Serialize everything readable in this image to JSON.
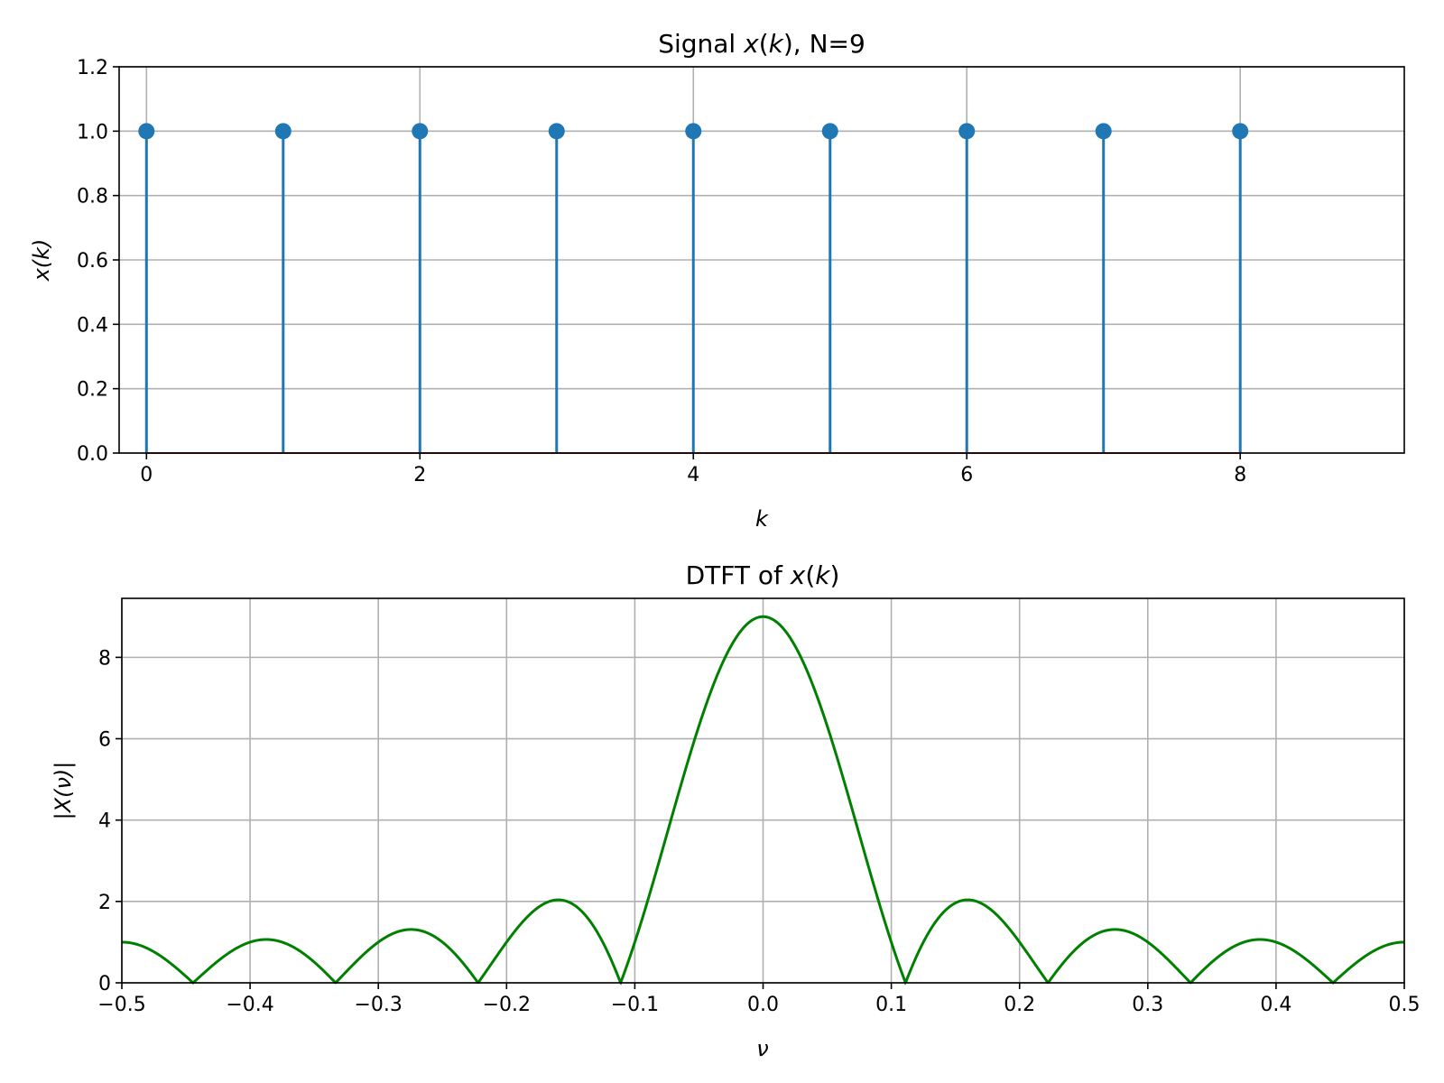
{
  "chart_data": [
    {
      "type": "stem",
      "title": "Signal x(k), N=9",
      "xlabel": "k",
      "ylabel": "x(k)",
      "xlim": [
        -0.2,
        9.2
      ],
      "ylim": [
        0,
        1.2
      ],
      "xticks": [
        0,
        2,
        4,
        6,
        8
      ],
      "xtick_labels": [
        "0",
        "2",
        "4",
        "6",
        "8"
      ],
      "yticks": [
        0.0,
        0.2,
        0.4,
        0.6,
        0.8,
        1.0,
        1.2
      ],
      "ytick_labels": [
        "0.0",
        "0.2",
        "0.4",
        "0.6",
        "0.8",
        "1.0",
        "1.2"
      ],
      "grid": true,
      "color": "#1f77b4",
      "baseline_color": "#d62728",
      "x": [
        0,
        1,
        2,
        3,
        4,
        5,
        6,
        7,
        8
      ],
      "y": [
        1,
        1,
        1,
        1,
        1,
        1,
        1,
        1,
        1
      ]
    },
    {
      "type": "line",
      "title": "DTFT of x(k)",
      "xlabel": "ν",
      "ylabel": "|X(ν)|",
      "xlim": [
        -0.5,
        0.5
      ],
      "ylim": [
        0,
        9.45
      ],
      "xticks": [
        -0.5,
        -0.4,
        -0.3,
        -0.2,
        -0.1,
        0.0,
        0.1,
        0.2,
        0.3,
        0.4,
        0.5
      ],
      "xtick_labels": [
        "−0.5",
        "−0.4",
        "−0.3",
        "−0.2",
        "−0.1",
        "0.0",
        "0.1",
        "0.2",
        "0.3",
        "0.4",
        "0.5"
      ],
      "yticks": [
        0,
        2,
        4,
        6,
        8
      ],
      "ytick_labels": [
        "0",
        "2",
        "4",
        "6",
        "8"
      ],
      "grid": true,
      "color": "#008000",
      "function": "|sin(9πν)/sin(πν)|",
      "N": 9
    }
  ]
}
